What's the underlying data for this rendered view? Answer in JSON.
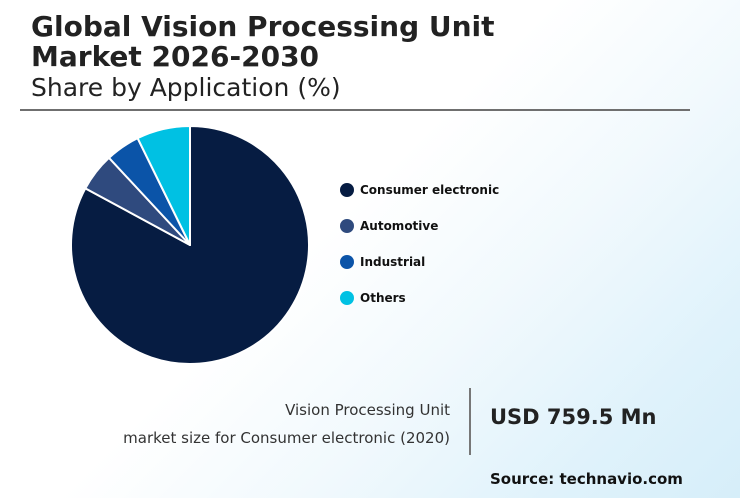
{
  "header": {
    "title_line1": "Global Vision Processing Unit",
    "title_line2": "Market 2026-2030",
    "subtitle": "Share by Application (%)"
  },
  "chart_data": {
    "type": "pie",
    "title": "Global Vision Processing Unit Market 2026-2030",
    "subtitle": "Share by Application (%)",
    "unit": "%",
    "legend_position": "right",
    "slices": [
      {
        "label": "Consumer electronic",
        "value": 80,
        "color": "#061c42"
      },
      {
        "label": "Automotive",
        "value": 5,
        "color": "#2f4a7e"
      },
      {
        "label": "Industrial",
        "value": 4.5,
        "color": "#0b54a8"
      },
      {
        "label": "Others",
        "value": 7,
        "color": "#00c1e3"
      }
    ]
  },
  "stat": {
    "label_line1": "Vision Processing Unit",
    "label_line2": "market size for Consumer electronic (2020)",
    "value": "USD 759.5 Mn"
  },
  "source": "Source: technavio.com"
}
